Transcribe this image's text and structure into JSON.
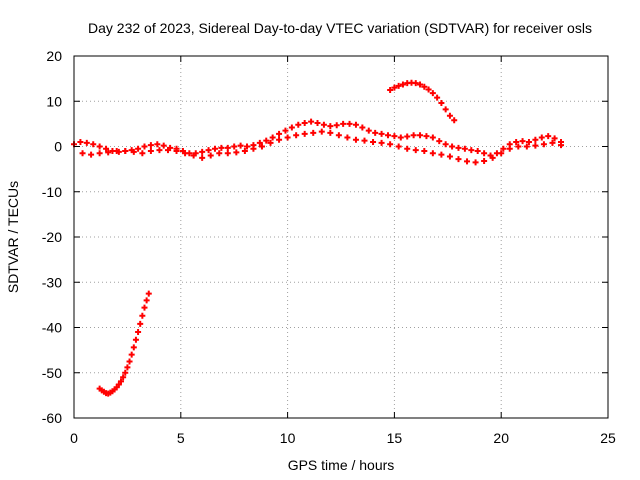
{
  "chart_data": {
    "type": "scatter",
    "title": "Day 232 of 2023, Sidereal Day-to-day VTEC variation (SDTVAR) for receiver osls",
    "xlabel": "GPS time / hours",
    "ylabel": "SDTVAR / TECUs",
    "xlim": [
      0,
      25
    ],
    "ylim": [
      -60,
      20
    ],
    "xticks": [
      0,
      5,
      10,
      15,
      20,
      25
    ],
    "yticks": [
      -60,
      -50,
      -40,
      -30,
      -20,
      -10,
      0,
      10,
      20
    ],
    "grid": true,
    "marker": "plus",
    "series": [
      {
        "name": "track-1",
        "color": "#ff0000",
        "points": [
          [
            0.0,
            0.5
          ],
          [
            0.3,
            1.0
          ],
          [
            0.6,
            0.8
          ],
          [
            0.9,
            0.5
          ],
          [
            1.2,
            0.0
          ],
          [
            1.5,
            -0.5
          ],
          [
            1.8,
            -1.0
          ],
          [
            2.1,
            -1.2
          ],
          [
            2.4,
            -1.0
          ],
          [
            2.7,
            -0.8
          ],
          [
            3.0,
            -0.5
          ],
          [
            3.3,
            0.0
          ],
          [
            3.6,
            0.3
          ],
          [
            3.9,
            0.5
          ],
          [
            4.2,
            0.2
          ],
          [
            4.5,
            -0.3
          ],
          [
            4.8,
            -0.5
          ],
          [
            5.1,
            -1.0
          ],
          [
            5.4,
            -1.5
          ],
          [
            5.7,
            -1.5
          ],
          [
            6.0,
            -1.2
          ],
          [
            6.3,
            -0.8
          ],
          [
            6.6,
            -0.5
          ],
          [
            6.9,
            -0.3
          ],
          [
            7.2,
            -0.3
          ],
          [
            7.5,
            0.0
          ],
          [
            7.8,
            0.2
          ],
          [
            8.1,
            0.0
          ],
          [
            8.4,
            0.3
          ],
          [
            8.7,
            0.8
          ],
          [
            9.0,
            1.3
          ],
          [
            9.3,
            2.0
          ],
          [
            9.6,
            2.8
          ],
          [
            9.9,
            3.5
          ],
          [
            10.2,
            4.2
          ],
          [
            10.5,
            4.8
          ],
          [
            10.8,
            5.2
          ],
          [
            11.1,
            5.5
          ],
          [
            11.4,
            5.2
          ],
          [
            11.7,
            4.8
          ],
          [
            12.0,
            4.5
          ],
          [
            12.3,
            4.7
          ],
          [
            12.6,
            5.0
          ],
          [
            12.9,
            5.0
          ],
          [
            13.2,
            4.8
          ],
          [
            13.5,
            4.2
          ],
          [
            13.8,
            3.5
          ],
          [
            14.1,
            3.0
          ],
          [
            14.4,
            2.8
          ],
          [
            14.7,
            2.5
          ],
          [
            15.0,
            2.3
          ],
          [
            15.3,
            2.0
          ],
          [
            15.6,
            2.2
          ],
          [
            15.9,
            2.5
          ],
          [
            16.2,
            2.5
          ],
          [
            16.5,
            2.3
          ],
          [
            16.8,
            2.0
          ],
          [
            17.1,
            1.2
          ],
          [
            17.4,
            0.5
          ],
          [
            17.7,
            0.0
          ],
          [
            18.0,
            -0.3
          ],
          [
            18.3,
            -0.5
          ],
          [
            18.6,
            -0.8
          ],
          [
            18.9,
            -1.0
          ],
          [
            19.2,
            -1.5
          ],
          [
            19.5,
            -2.0
          ],
          [
            19.8,
            -1.5
          ],
          [
            20.1,
            -0.5
          ],
          [
            20.4,
            0.5
          ],
          [
            20.7,
            1.0
          ],
          [
            21.0,
            1.2
          ],
          [
            21.3,
            1.0
          ],
          [
            21.6,
            1.5
          ],
          [
            21.9,
            2.0
          ],
          [
            22.2,
            2.3
          ],
          [
            22.5,
            1.8
          ],
          [
            22.8,
            1.0
          ]
        ]
      },
      {
        "name": "track-2",
        "color": "#ff0000",
        "points": [
          [
            0.4,
            -1.5
          ],
          [
            0.8,
            -1.8
          ],
          [
            1.2,
            -1.5
          ],
          [
            1.6,
            -1.3
          ],
          [
            2.0,
            -1.0
          ],
          [
            2.4,
            -1.0
          ],
          [
            2.8,
            -1.2
          ],
          [
            3.2,
            -1.5
          ],
          [
            3.6,
            -1.0
          ],
          [
            4.0,
            -0.8
          ],
          [
            4.4,
            -0.8
          ],
          [
            4.8,
            -1.0
          ],
          [
            5.2,
            -1.5
          ],
          [
            5.6,
            -2.0
          ],
          [
            6.0,
            -2.5
          ],
          [
            6.4,
            -2.0
          ],
          [
            6.8,
            -1.5
          ],
          [
            7.2,
            -1.5
          ],
          [
            7.6,
            -1.3
          ],
          [
            8.0,
            -1.0
          ],
          [
            8.4,
            -0.5
          ],
          [
            8.8,
            0.0
          ],
          [
            9.2,
            0.8
          ],
          [
            9.6,
            1.5
          ],
          [
            10.0,
            2.0
          ],
          [
            10.4,
            2.5
          ],
          [
            10.8,
            2.8
          ],
          [
            11.2,
            3.0
          ],
          [
            11.6,
            3.3
          ],
          [
            12.0,
            3.0
          ],
          [
            12.4,
            2.5
          ],
          [
            12.8,
            2.0
          ],
          [
            13.2,
            1.5
          ],
          [
            13.6,
            1.3
          ],
          [
            14.0,
            1.0
          ],
          [
            14.4,
            0.8
          ],
          [
            14.8,
            0.5
          ],
          [
            15.2,
            0.0
          ],
          [
            15.6,
            -0.5
          ],
          [
            16.0,
            -0.8
          ],
          [
            16.4,
            -1.0
          ],
          [
            16.8,
            -1.5
          ],
          [
            17.2,
            -1.8
          ],
          [
            17.6,
            -2.2
          ],
          [
            18.0,
            -2.8
          ],
          [
            18.4,
            -3.3
          ],
          [
            18.8,
            -3.5
          ],
          [
            19.2,
            -3.2
          ],
          [
            19.6,
            -2.5
          ],
          [
            20.0,
            -1.5
          ],
          [
            20.4,
            -0.5
          ],
          [
            20.8,
            0.0
          ],
          [
            21.2,
            0.0
          ],
          [
            21.6,
            0.2
          ],
          [
            22.0,
            0.5
          ],
          [
            22.4,
            0.8
          ],
          [
            22.8,
            0.3
          ]
        ]
      },
      {
        "name": "track-3",
        "color": "#ff0000",
        "points": [
          [
            1.2,
            -53.5
          ],
          [
            1.3,
            -53.9
          ],
          [
            1.4,
            -54.2
          ],
          [
            1.5,
            -54.5
          ],
          [
            1.6,
            -54.6
          ],
          [
            1.7,
            -54.4
          ],
          [
            1.8,
            -54.1
          ],
          [
            1.9,
            -53.7
          ],
          [
            2.0,
            -53.2
          ],
          [
            2.1,
            -52.6
          ],
          [
            2.2,
            -51.9
          ],
          [
            2.3,
            -51.0
          ],
          [
            2.4,
            -50.0
          ],
          [
            2.5,
            -48.8
          ],
          [
            2.6,
            -47.5
          ],
          [
            2.7,
            -46.0
          ],
          [
            2.8,
            -44.4
          ],
          [
            2.9,
            -42.7
          ],
          [
            3.0,
            -41.0
          ],
          [
            3.1,
            -39.2
          ],
          [
            3.2,
            -37.4
          ],
          [
            3.3,
            -35.6
          ],
          [
            3.4,
            -34.0
          ],
          [
            3.5,
            -32.5
          ]
        ]
      },
      {
        "name": "track-4",
        "color": "#ff0000",
        "points": [
          [
            14.8,
            12.5
          ],
          [
            15.0,
            13.0
          ],
          [
            15.2,
            13.4
          ],
          [
            15.4,
            13.7
          ],
          [
            15.6,
            14.0
          ],
          [
            15.8,
            14.1
          ],
          [
            16.0,
            14.0
          ],
          [
            16.2,
            13.7
          ],
          [
            16.4,
            13.2
          ],
          [
            16.6,
            12.6
          ],
          [
            16.8,
            11.8
          ],
          [
            17.0,
            10.8
          ],
          [
            17.2,
            9.6
          ],
          [
            17.4,
            8.2
          ],
          [
            17.6,
            6.8
          ],
          [
            17.8,
            5.8
          ]
        ]
      }
    ]
  }
}
